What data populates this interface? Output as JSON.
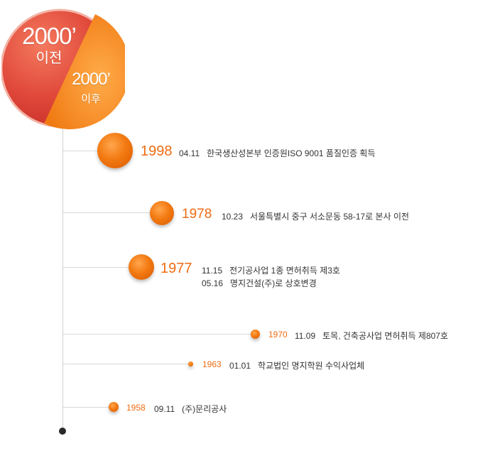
{
  "badge": {
    "pre_year": "2000’",
    "pre_label": "이전",
    "post_year": "2000’",
    "post_label": "이후",
    "pre_color": "#e0483a",
    "post_color": "#f28a1e"
  },
  "events": [
    {
      "year": "1998",
      "items": [
        {
          "date": "04.11",
          "text": "한국생산성본부 인증원ISO 9001 품질인증 획득"
        }
      ]
    },
    {
      "year": "1978",
      "items": [
        {
          "date": "10.23",
          "text": "서울특별시 중구 서소문동 58-17로 본사 이전"
        }
      ]
    },
    {
      "year": "1977",
      "items": [
        {
          "date": "11.15",
          "text": "전기공사업 1종 면허취득 제3호"
        },
        {
          "date": "05.16",
          "text": "명지건설(주)로 상호변경"
        }
      ]
    },
    {
      "year": "1970",
      "items": [
        {
          "date": "11.09",
          "text": "토목, 건축공사업 면허취득 제807호"
        }
      ]
    },
    {
      "year": "1963",
      "items": [
        {
          "date": "01.01",
          "text": "학교법인 명지학원 수익사업체"
        }
      ]
    },
    {
      "year": "1958",
      "items": [
        {
          "date": "09.11",
          "text": "(주)문리공사"
        }
      ]
    }
  ]
}
